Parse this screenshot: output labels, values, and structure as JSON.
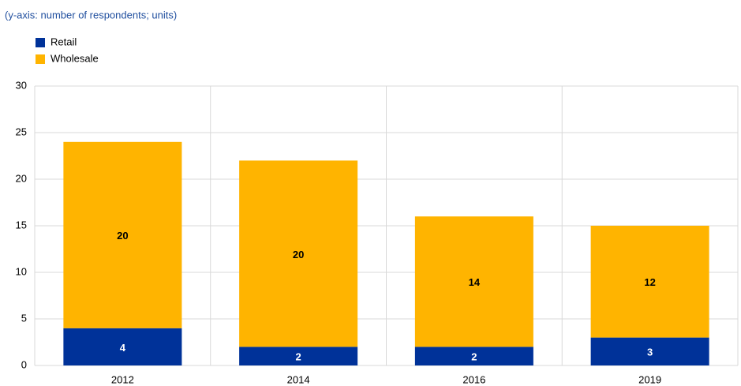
{
  "chart_data": {
    "type": "stacked_bar",
    "subtitle": "(y-axis: number of respondents; units)",
    "categories": [
      "2012",
      "2014",
      "2016",
      "2019"
    ],
    "series": [
      {
        "name": "Retail",
        "color": "#003299",
        "values": [
          4,
          2,
          2,
          3
        ]
      },
      {
        "name": "Wholesale",
        "color": "#ffb400",
        "values": [
          20,
          20,
          14,
          12
        ]
      }
    ],
    "ylim": [
      0,
      30
    ],
    "yticks": [
      0,
      5,
      10,
      15,
      20,
      25,
      30
    ],
    "grid": true,
    "legend": "top-left"
  }
}
